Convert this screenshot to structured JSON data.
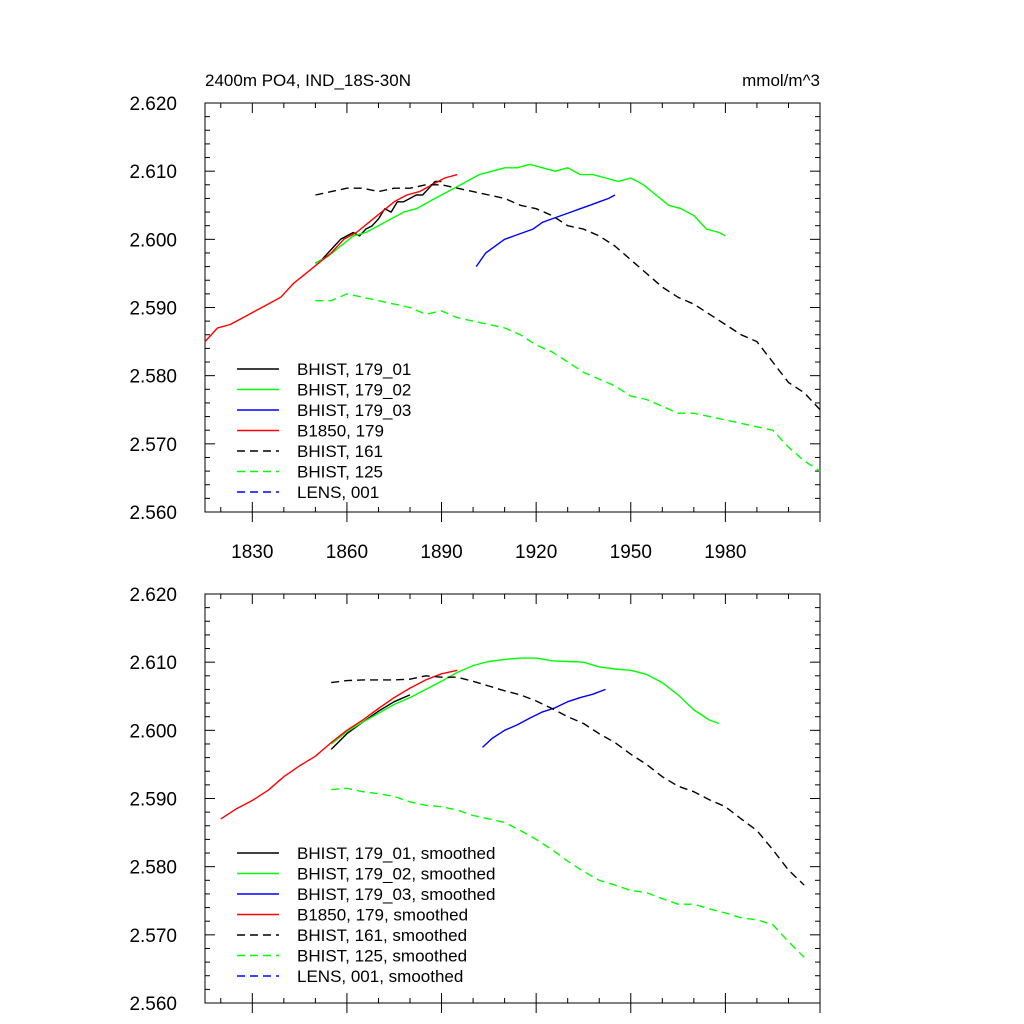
{
  "chart_data": [
    {
      "type": "line",
      "title": "2400m PO4, IND_18S-30N",
      "units": "mmol/m^3",
      "xlim": [
        1815,
        2010
      ],
      "ylim": [
        2.56,
        2.62
      ],
      "y_ticks": [
        "2.560",
        "2.570",
        "2.580",
        "2.590",
        "2.600",
        "2.610",
        "2.620"
      ],
      "x_ticks": [
        "1830",
        "1860",
        "1890",
        "1920",
        "1950",
        "1980"
      ],
      "legend": "bottom-left",
      "series": [
        {
          "name": "BHIST, 179_01",
          "color": "#000000",
          "dash": "solid",
          "x": [
            1850,
            1852,
            1854,
            1856,
            1858,
            1860,
            1862,
            1864,
            1866,
            1868,
            1870,
            1872,
            1874,
            1876,
            1878,
            1880,
            1882,
            1884,
            1886,
            1888,
            1890
          ],
          "y": [
            2.5965,
            2.597,
            2.598,
            2.599,
            2.6,
            2.6005,
            2.601,
            2.6005,
            2.6015,
            2.602,
            2.603,
            2.6045,
            2.604,
            2.6055,
            2.6055,
            2.606,
            2.6065,
            2.6065,
            2.6075,
            2.6085,
            2.6085
          ]
        },
        {
          "name": "BHIST, 179_02",
          "color": "#00ff00",
          "dash": "solid",
          "x": [
            1850,
            1854,
            1858,
            1862,
            1866,
            1870,
            1874,
            1878,
            1882,
            1886,
            1890,
            1894,
            1898,
            1902,
            1906,
            1910,
            1914,
            1918,
            1922,
            1926,
            1930,
            1934,
            1938,
            1942,
            1946,
            1950,
            1954,
            1958,
            1962,
            1966,
            1970,
            1974,
            1978,
            1980
          ],
          "y": [
            2.5965,
            2.5975,
            2.599,
            2.6005,
            2.601,
            2.602,
            2.603,
            2.604,
            2.6045,
            2.6055,
            2.6065,
            2.6075,
            2.6085,
            2.6095,
            2.61,
            2.6105,
            2.6105,
            2.611,
            2.6105,
            2.61,
            2.6105,
            2.6095,
            2.6095,
            2.609,
            2.6085,
            2.609,
            2.608,
            2.6065,
            2.605,
            2.6045,
            2.6035,
            2.6015,
            2.601,
            2.6005
          ]
        },
        {
          "name": "BHIST, 179_03",
          "color": "#0000ff",
          "dash": "solid",
          "x": [
            1901,
            1904,
            1907,
            1910,
            1913,
            1916,
            1919,
            1922,
            1925,
            1928,
            1931,
            1934,
            1937,
            1940,
            1943,
            1945
          ],
          "y": [
            2.596,
            2.598,
            2.599,
            2.6,
            2.6005,
            2.601,
            2.6015,
            2.6025,
            2.603,
            2.6035,
            2.604,
            2.6045,
            2.605,
            2.6055,
            2.606,
            2.6065
          ]
        },
        {
          "name": "B1850, 179",
          "color": "#ff0000",
          "dash": "solid",
          "x": [
            1815,
            1819,
            1823,
            1827,
            1831,
            1835,
            1839,
            1843,
            1847,
            1851,
            1855,
            1859,
            1863,
            1867,
            1871,
            1875,
            1879,
            1883,
            1887,
            1891,
            1895
          ],
          "y": [
            2.585,
            2.587,
            2.5875,
            2.5885,
            2.5895,
            2.5905,
            2.5915,
            2.5935,
            2.595,
            2.5965,
            2.598,
            2.6,
            2.601,
            2.6025,
            2.604,
            2.6055,
            2.6065,
            2.607,
            2.608,
            2.609,
            2.6095
          ]
        },
        {
          "name": "BHIST, 161",
          "color": "#000000",
          "dash": "dashed",
          "x": [
            1850,
            1855,
            1860,
            1865,
            1870,
            1875,
            1880,
            1885,
            1890,
            1895,
            1900,
            1905,
            1910,
            1915,
            1920,
            1925,
            1930,
            1935,
            1940,
            1945,
            1950,
            1955,
            1960,
            1965,
            1970,
            1975,
            1980,
            1985,
            1990,
            1995,
            2000,
            2005,
            2010
          ],
          "y": [
            2.6065,
            2.607,
            2.6075,
            2.6075,
            2.607,
            2.6075,
            2.6075,
            2.608,
            2.608,
            2.6075,
            2.607,
            2.6065,
            2.606,
            2.605,
            2.6045,
            2.6035,
            2.602,
            2.6015,
            2.6005,
            2.599,
            2.597,
            2.595,
            2.593,
            2.5915,
            2.5905,
            2.589,
            2.5875,
            2.586,
            2.585,
            2.582,
            2.579,
            2.5775,
            2.575
          ]
        },
        {
          "name": "BHIST, 125",
          "color": "#00ff00",
          "dash": "dashed",
          "x": [
            1850,
            1855,
            1860,
            1865,
            1870,
            1875,
            1880,
            1885,
            1890,
            1895,
            1900,
            1905,
            1910,
            1915,
            1920,
            1925,
            1930,
            1935,
            1940,
            1945,
            1950,
            1955,
            1960,
            1965,
            1970,
            1975,
            1980,
            1985,
            1990,
            1995,
            2000,
            2005,
            2010
          ],
          "y": [
            2.591,
            2.591,
            2.592,
            2.5915,
            2.591,
            2.5905,
            2.59,
            2.589,
            2.5895,
            2.5885,
            2.588,
            2.5875,
            2.587,
            2.586,
            2.5845,
            2.5835,
            2.582,
            2.5805,
            2.5795,
            2.5785,
            2.577,
            2.5765,
            2.5755,
            2.5745,
            2.5745,
            2.574,
            2.5735,
            2.573,
            2.5725,
            2.572,
            2.5695,
            2.5675,
            2.566
          ]
        },
        {
          "name": "LENS, 001",
          "color": "#0000ff",
          "dash": "dashed",
          "x": [],
          "y": []
        }
      ]
    },
    {
      "type": "line",
      "title": "",
      "xlim": [
        1815,
        2010
      ],
      "ylim": [
        2.56,
        2.62
      ],
      "y_ticks": [
        "2.560",
        "2.570",
        "2.580",
        "2.590",
        "2.600",
        "2.610",
        "2.620"
      ],
      "x_ticks": [],
      "legend": "bottom-left",
      "series": [
        {
          "name": "BHIST, 179_01, smoothed",
          "color": "#000000",
          "dash": "solid",
          "x": [
            1855,
            1860,
            1865,
            1870,
            1875,
            1880
          ],
          "y": [
            2.5972,
            2.5995,
            2.6012,
            2.6028,
            2.6042,
            2.6052
          ]
        },
        {
          "name": "BHIST, 179_02, smoothed",
          "color": "#00ff00",
          "dash": "solid",
          "x": [
            1855,
            1860,
            1865,
            1870,
            1875,
            1880,
            1885,
            1890,
            1895,
            1900,
            1905,
            1910,
            1915,
            1920,
            1925,
            1930,
            1935,
            1940,
            1945,
            1950,
            1955,
            1960,
            1965,
            1970,
            1975,
            1978
          ],
          "y": [
            2.598,
            2.5998,
            2.6012,
            2.6025,
            2.6038,
            2.6048,
            2.606,
            2.6072,
            2.6085,
            2.6095,
            2.6101,
            2.6104,
            2.6106,
            2.6106,
            2.6102,
            2.6101,
            2.61,
            2.6093,
            2.609,
            2.6088,
            2.6082,
            2.607,
            2.6052,
            2.603,
            2.6015,
            2.601
          ]
        },
        {
          "name": "BHIST, 179_03, smoothed",
          "color": "#0000ff",
          "dash": "solid",
          "x": [
            1903,
            1906,
            1910,
            1914,
            1918,
            1922,
            1926,
            1930,
            1934,
            1938,
            1942
          ],
          "y": [
            2.5975,
            2.5988,
            2.6,
            2.6008,
            2.6018,
            2.6027,
            2.6033,
            2.6042,
            2.6048,
            2.6053,
            2.606
          ]
        },
        {
          "name": "B1850, 179, smoothed",
          "color": "#ff0000",
          "dash": "solid",
          "x": [
            1820,
            1825,
            1830,
            1835,
            1840,
            1845,
            1850,
            1855,
            1860,
            1865,
            1870,
            1875,
            1880,
            1885,
            1890,
            1895
          ],
          "y": [
            2.587,
            2.5885,
            2.5897,
            2.5912,
            2.5932,
            2.5948,
            2.5962,
            2.5982,
            2.6,
            2.6015,
            2.6032,
            2.6048,
            2.6062,
            2.6074,
            2.6083,
            2.6088
          ]
        },
        {
          "name": "BHIST, 161, smoothed",
          "color": "#000000",
          "dash": "dashed",
          "x": [
            1855,
            1860,
            1865,
            1870,
            1875,
            1880,
            1885,
            1890,
            1895,
            1900,
            1905,
            1910,
            1915,
            1920,
            1925,
            1930,
            1935,
            1940,
            1945,
            1950,
            1955,
            1960,
            1965,
            1970,
            1975,
            1980,
            1985,
            1990,
            1995,
            2000,
            2005
          ],
          "y": [
            2.607,
            2.6073,
            2.6074,
            2.6074,
            2.6074,
            2.6075,
            2.608,
            2.6078,
            2.6078,
            2.6072,
            2.6065,
            2.6058,
            2.6052,
            2.6043,
            2.6032,
            2.602,
            2.601,
            2.5995,
            2.5982,
            2.5965,
            2.595,
            2.5932,
            2.5918,
            2.591,
            2.5898,
            2.5888,
            2.587,
            2.5853,
            2.5825,
            2.5795,
            2.5773
          ]
        },
        {
          "name": "BHIST, 125, smoothed",
          "color": "#00ff00",
          "dash": "dashed",
          "x": [
            1855,
            1860,
            1865,
            1870,
            1875,
            1880,
            1885,
            1890,
            1895,
            1900,
            1905,
            1910,
            1915,
            1920,
            1925,
            1930,
            1935,
            1940,
            1945,
            1950,
            1955,
            1960,
            1965,
            1970,
            1975,
            1980,
            1985,
            1990,
            1995,
            2000,
            2005
          ],
          "y": [
            2.5913,
            2.5915,
            2.591,
            2.5907,
            2.5903,
            2.5895,
            2.589,
            2.5888,
            2.5883,
            2.5875,
            2.587,
            2.5865,
            2.5853,
            2.584,
            2.5825,
            2.5808,
            2.5793,
            2.578,
            2.5773,
            2.5765,
            2.5762,
            2.5753,
            2.5745,
            2.5745,
            2.5738,
            2.5732,
            2.5725,
            2.5722,
            2.5715,
            2.569,
            2.5667
          ]
        },
        {
          "name": "LENS, 001, smoothed",
          "color": "#0000ff",
          "dash": "dashed",
          "x": [],
          "y": []
        }
      ]
    }
  ]
}
